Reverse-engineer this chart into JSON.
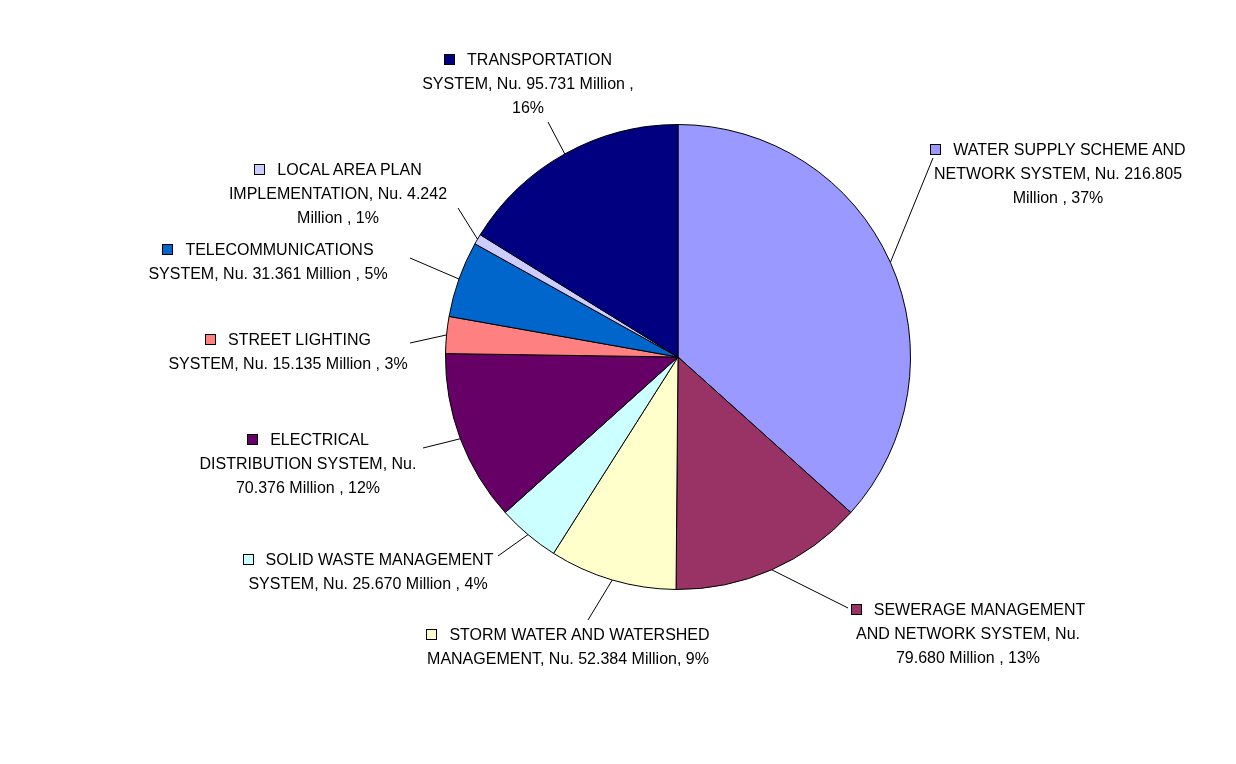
{
  "chart_data": {
    "type": "pie",
    "categories": [
      "WATER SUPPLY SCHEME AND NETWORK SYSTEM",
      "SEWERAGE MANAGEMENT AND NETWORK SYSTEM",
      "STORM WATER AND WATERSHED MANAGEMENT",
      "SOLID WASTE MANAGEMENT SYSTEM",
      "ELECTRICAL DISTRIBUTION SYSTEM",
      "STREET LIGHTING SYSTEM",
      "TELECOMMUNICATIONS SYSTEM",
      "LOCAL AREA PLAN IMPLEMENTATION",
      "TRANSPORTATION SYSTEM"
    ],
    "values": [
      216.805,
      79.68,
      52.384,
      25.67,
      70.376,
      15.135,
      31.361,
      4.242,
      95.731
    ],
    "colors": [
      "#9999ff",
      "#993366",
      "#ffffcc",
      "#ccffff",
      "#660066",
      "#ff8080",
      "#0066cc",
      "#ccccff",
      "#000080"
    ],
    "value_labels": [
      "Nu. 216.805 Million , 37%",
      "Nu. 79.680 Million , 13%",
      "Nu. 52.384 Million, 9%",
      "Nu. 25.670 Million , 4%",
      "Nu. 70.376 Million , 12%",
      "Nu. 15.135 Million , 3%",
      "Nu. 31.361 Million , 5%",
      "Nu. 4.242 Million , 1%",
      "Nu. 95.731 Million , 16%"
    ],
    "legend": "left"
  }
}
